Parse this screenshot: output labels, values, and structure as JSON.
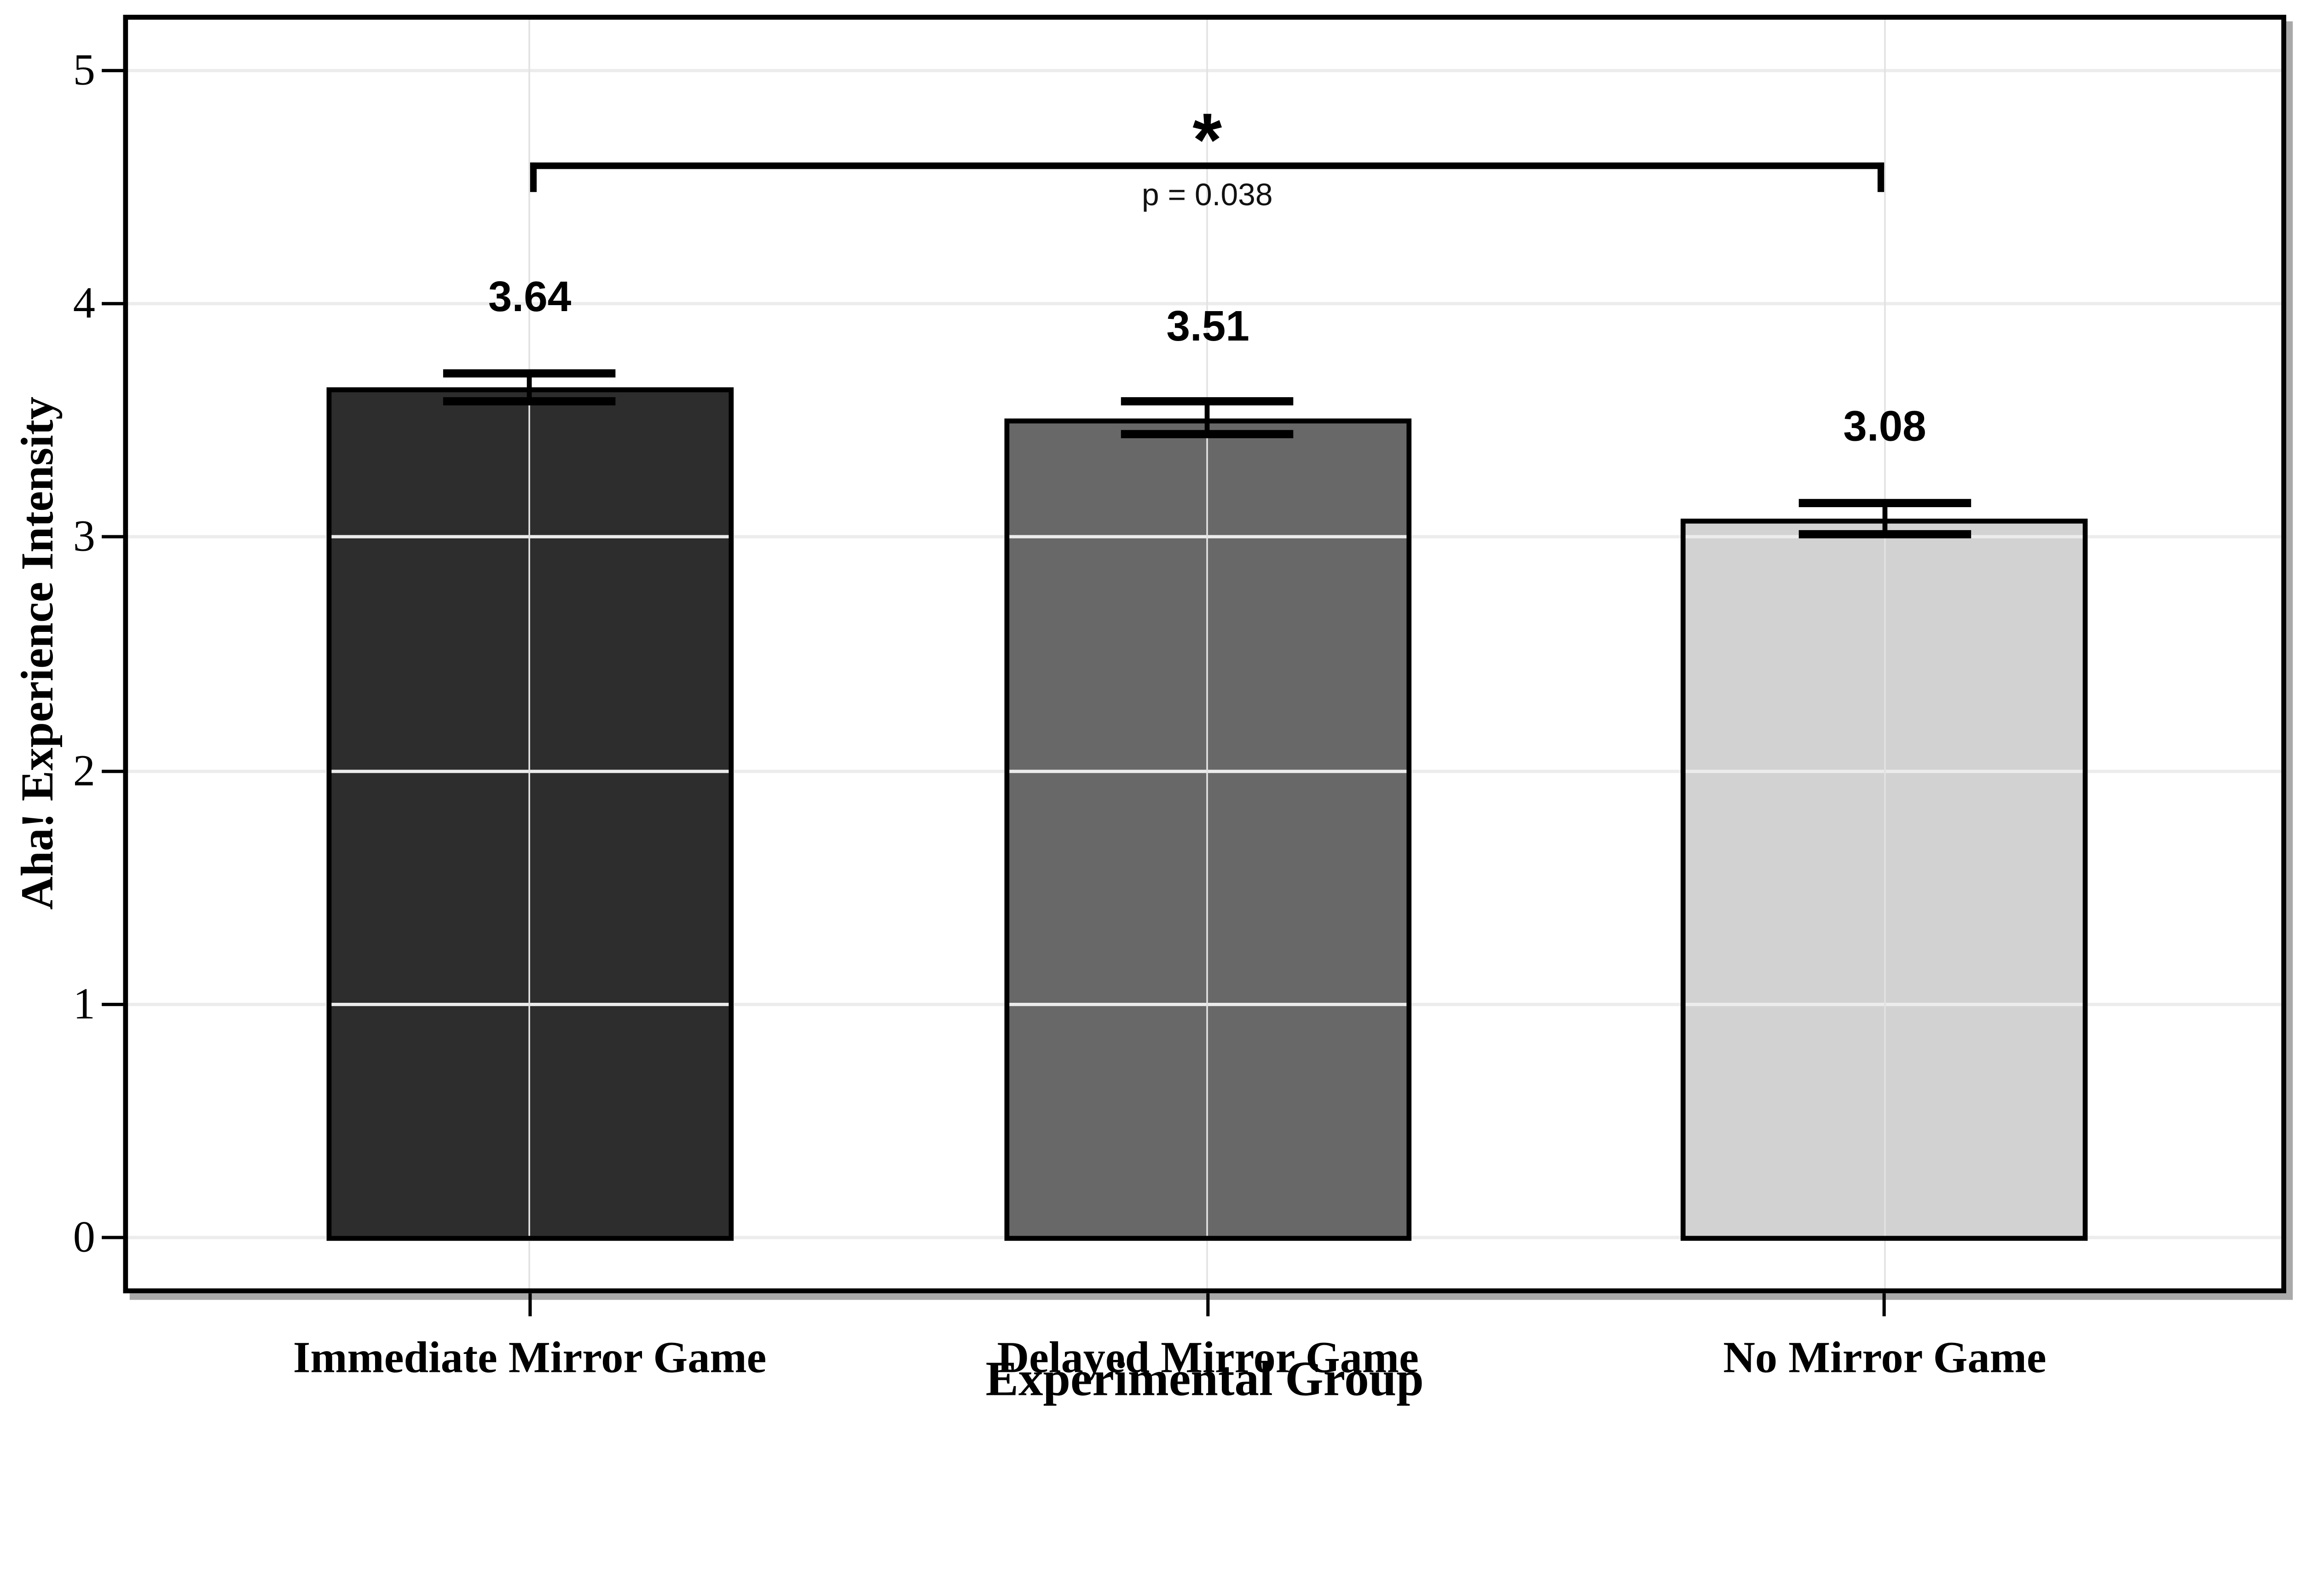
{
  "chart_data": {
    "type": "bar",
    "title": "",
    "xlabel": "Experimental Group",
    "ylabel": "Aha! Experience Intensity",
    "categories": [
      "Immediate Mirror Game",
      "Delayed Mirror Game",
      "No Mirror Game"
    ],
    "values": [
      3.64,
      3.51,
      3.08
    ],
    "value_labels": [
      "3.64",
      "3.51",
      "3.08"
    ],
    "errors": [
      0.06,
      0.07,
      0.07
    ],
    "bar_colors": [
      "#2d2d2d",
      "#686868",
      "#d2d2d2"
    ],
    "bar_border_color": "#000000",
    "yticks": [
      "0",
      "1",
      "2",
      "3",
      "4",
      "5"
    ],
    "ylim": [
      -0.24,
      5.24
    ],
    "grid": true,
    "legend": null,
    "significance": {
      "label": "*",
      "p_text": "p = 0.038",
      "from_category": "Immediate Mirror Game",
      "to_category": "No Mirror Game",
      "from_index": 0,
      "to_index": 2,
      "bracket_y": 4.59,
      "tick_drop": 0.1
    }
  }
}
